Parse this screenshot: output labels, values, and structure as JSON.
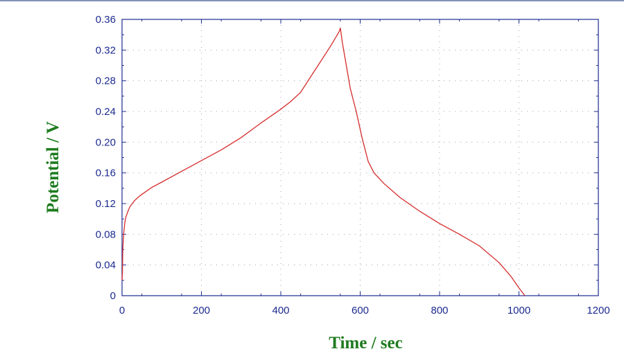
{
  "chart_data": {
    "type": "line",
    "title": "",
    "xlabel": "Time / sec",
    "ylabel": "Potential / V",
    "xlim": [
      0,
      1200
    ],
    "ylim": [
      0,
      0.36
    ],
    "x_ticks": [
      "0",
      "200",
      "400",
      "600",
      "800",
      "1000",
      "1200"
    ],
    "y_ticks": [
      "0",
      "0.04",
      "0.08",
      "0.12",
      "0.16",
      "0.20",
      "0.24",
      "0.28",
      "0.32",
      "0.36"
    ],
    "grid": true,
    "legend": "none",
    "colors": {
      "line": "#d62b2b",
      "axis": "#1b2a8f",
      "grid": "#9aa0b0",
      "title": "#1e7b1e"
    },
    "series": [
      {
        "x": [
          0,
          1,
          2,
          4,
          7,
          10,
          15,
          20,
          30,
          40,
          50,
          75,
          100,
          150,
          200,
          250,
          300,
          350,
          400,
          425,
          450,
          475,
          500,
          525,
          540,
          548,
          550,
          555,
          565,
          575,
          590,
          605,
          620,
          635,
          660,
          700,
          750,
          800,
          850,
          900,
          950,
          980,
          1000,
          1015
        ],
        "y": [
          0.02,
          0.03,
          0.06,
          0.08,
          0.095,
          0.103,
          0.11,
          0.116,
          0.123,
          0.128,
          0.132,
          0.141,
          0.148,
          0.162,
          0.176,
          0.19,
          0.206,
          0.225,
          0.243,
          0.253,
          0.265,
          0.285,
          0.305,
          0.325,
          0.338,
          0.345,
          0.349,
          0.33,
          0.3,
          0.27,
          0.24,
          0.205,
          0.175,
          0.16,
          0.146,
          0.128,
          0.11,
          0.094,
          0.08,
          0.065,
          0.043,
          0.025,
          0.01,
          0.0
        ]
      }
    ]
  }
}
